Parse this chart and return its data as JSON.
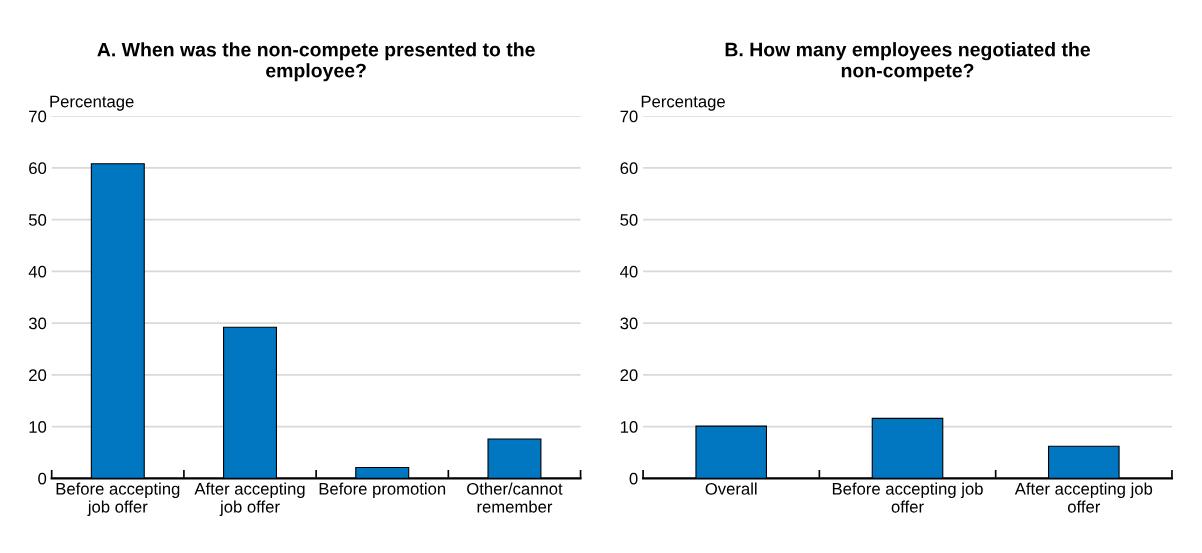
{
  "chart_data": [
    {
      "type": "bar",
      "title": "A. When was the non-compete presented to the employee?",
      "ylabel": "Percentage",
      "categories": [
        "Before accepting job offer",
        "After accepting job offer",
        "Before promotion",
        "Other/cannot remember"
      ],
      "values": [
        60.8,
        29.2,
        2.1,
        7.6
      ],
      "color": "#0077c0",
      "ylim": [
        0,
        70
      ],
      "yticks": [
        0,
        10,
        20,
        30,
        40,
        50,
        60,
        70
      ],
      "grid": "y"
    },
    {
      "type": "bar",
      "title": "B. How many employees negotiated the non-compete?",
      "ylabel": "Percentage",
      "categories": [
        "Overall",
        "Before accepting job offer",
        "After accepting job offer"
      ],
      "values": [
        10.1,
        11.6,
        6.2
      ],
      "color": "#0077c0",
      "ylim": [
        0,
        70
      ],
      "yticks": [
        0,
        10,
        20,
        30,
        40,
        50,
        60,
        70
      ],
      "grid": "y"
    }
  ]
}
